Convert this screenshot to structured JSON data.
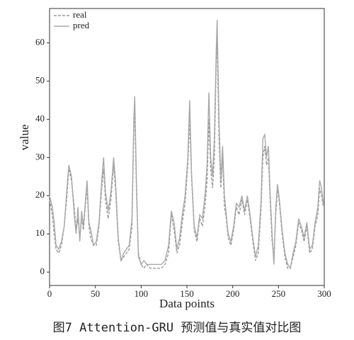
{
  "chart_data": {
    "type": "line",
    "caption": "图7  Attention-GRU 预测值与真实值对比图",
    "xlabel": "Data points",
    "ylabel": "value",
    "x": [
      0,
      3,
      5,
      7,
      10,
      13,
      16,
      19,
      21,
      24,
      27,
      29,
      31,
      33,
      35,
      37,
      39,
      41,
      43,
      45,
      48,
      51,
      54,
      57,
      59,
      61,
      64,
      67,
      70,
      72,
      75,
      78,
      81,
      84,
      87,
      90,
      92,
      93,
      95,
      97,
      100,
      103,
      106,
      110,
      114,
      118,
      122,
      126,
      130,
      133,
      136,
      139,
      142,
      145,
      148,
      151,
      153,
      155,
      158,
      161,
      164,
      167,
      170,
      172,
      174,
      176,
      178,
      180,
      182,
      183,
      185,
      187,
      189,
      191,
      193,
      195,
      198,
      201,
      204,
      207,
      210,
      213,
      216,
      219,
      222,
      225,
      228,
      231,
      233,
      235,
      237,
      239,
      241,
      243,
      245,
      247,
      249,
      251,
      254,
      257,
      260,
      263,
      266,
      269,
      272,
      275,
      278,
      281,
      284,
      287,
      290,
      293,
      295,
      297,
      299
    ],
    "series": [
      {
        "name": "real",
        "color": "#9a9a9a",
        "dash": true,
        "values": [
          19,
          15,
          10,
          6,
          5,
          7,
          12,
          20,
          27,
          24,
          17,
          11,
          14,
          9,
          14,
          11,
          17,
          22,
          12,
          9,
          7,
          7,
          12,
          22,
          27,
          19,
          14,
          19,
          28,
          22,
          8,
          3,
          4,
          5,
          6,
          12,
          38,
          42,
          20,
          5,
          2,
          1,
          2,
          1,
          1,
          1,
          1,
          2,
          5,
          15,
          11,
          5,
          7,
          13,
          18,
          28,
          40,
          25,
          11,
          8,
          14,
          12,
          18,
          24,
          40,
          27,
          22,
          30,
          55,
          60,
          35,
          22,
          30,
          17,
          14,
          9,
          7,
          11,
          17,
          15,
          19,
          15,
          19,
          14,
          8,
          3,
          5,
          17,
          30,
          33,
          28,
          30,
          18,
          8,
          4,
          15,
          22,
          18,
          10,
          4,
          1,
          1,
          4,
          7,
          13,
          11,
          8,
          12,
          5,
          6,
          12,
          15,
          22,
          20,
          17
        ]
      },
      {
        "name": "pred",
        "color": "#a8a8a8",
        "dash": false,
        "values": [
          20,
          17,
          13,
          7,
          6,
          8,
          12,
          22,
          28,
          25,
          15,
          10,
          17,
          8,
          16,
          12,
          18,
          24,
          13,
          11,
          7,
          8,
          13,
          24,
          30,
          21,
          16,
          21,
          30,
          24,
          9,
          3,
          5,
          6,
          7,
          14,
          40,
          46,
          22,
          4,
          2,
          3,
          2,
          2,
          2,
          2,
          2,
          3,
          7,
          16,
          13,
          6,
          9,
          15,
          20,
          30,
          45,
          26,
          12,
          9,
          15,
          14,
          21,
          28,
          47,
          30,
          25,
          35,
          58,
          66,
          40,
          24,
          33,
          20,
          15,
          10,
          8,
          12,
          18,
          17,
          20,
          16,
          20,
          15,
          9,
          4,
          7,
          19,
          35,
          36,
          30,
          33,
          20,
          10,
          2,
          17,
          23,
          19,
          11,
          5,
          2,
          1,
          5,
          8,
          14,
          12,
          9,
          13,
          6,
          7,
          13,
          17,
          24,
          22,
          18
        ]
      }
    ],
    "xlim": [
      0,
      300
    ],
    "xticks": [
      0,
      50,
      100,
      150,
      200,
      250,
      300
    ],
    "ylim": [
      -3.5,
      69
    ],
    "yticks": [
      0,
      10,
      20,
      30,
      40,
      50,
      60
    ],
    "legend": "upper-left"
  }
}
